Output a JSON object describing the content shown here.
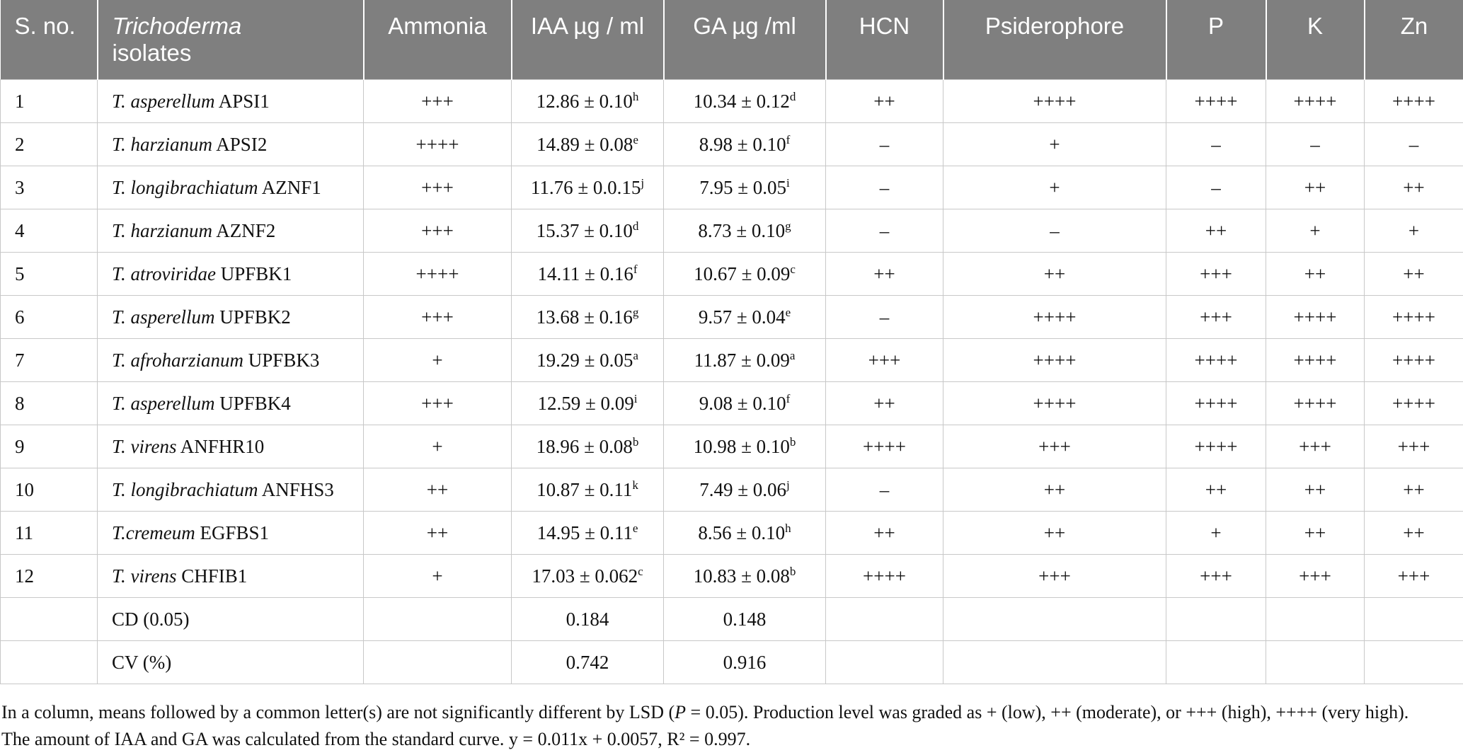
{
  "headers": {
    "sno": "S. no.",
    "isolates_italic": "Trichoderma",
    "isolates_rest": "isolates",
    "ammonia": "Ammonia",
    "iaa": "IAA µg / ml",
    "ga": "GA µg /ml",
    "hcn": "HCN",
    "psiderophore": "Psiderophore",
    "p": "P",
    "k": "K",
    "zn": "Zn"
  },
  "rows": [
    {
      "sno": "1",
      "species": "T. asperellum",
      "strain": "APSI1",
      "ammonia": "+++",
      "iaa": "12.86 ± 0.10",
      "iaa_sup": "h",
      "ga": "10.34 ± 0.12",
      "ga_sup": "d",
      "hcn": "++",
      "psid": "++++",
      "p": "++++",
      "k": "++++",
      "zn": "++++"
    },
    {
      "sno": "2",
      "species": "T. harzianum",
      "strain": "APSI2",
      "ammonia": "++++",
      "iaa": "14.89 ± 0.08",
      "iaa_sup": "e",
      "ga": "8.98 ± 0.10",
      "ga_sup": "f",
      "hcn": "–",
      "psid": "+",
      "p": "–",
      "k": "–",
      "zn": "–"
    },
    {
      "sno": "3",
      "species": "T. longibrachiatum",
      "strain": "AZNF1",
      "ammonia": "+++",
      "iaa": "11.76 ± 0.0.15",
      "iaa_sup": "j",
      "ga": "7.95 ± 0.05",
      "ga_sup": "i",
      "hcn": "–",
      "psid": "+",
      "p": "–",
      "k": "++",
      "zn": "++"
    },
    {
      "sno": "4",
      "species": "T. harzianum",
      "strain": "AZNF2",
      "ammonia": "+++",
      "iaa": "15.37 ± 0.10",
      "iaa_sup": "d",
      "ga": "8.73 ± 0.10",
      "ga_sup": "g",
      "hcn": "–",
      "psid": "–",
      "p": "++",
      "k": "+",
      "zn": "+"
    },
    {
      "sno": "5",
      "species": "T. atroviridae",
      "strain": "UPFBK1",
      "ammonia": "++++",
      "iaa": "14.11 ± 0.16",
      "iaa_sup": "f",
      "ga": "10.67 ± 0.09",
      "ga_sup": "c",
      "hcn": "++",
      "psid": "++",
      "p": "+++",
      "k": "++",
      "zn": "++"
    },
    {
      "sno": "6",
      "species": "T. asperellum",
      "strain": "UPFBK2",
      "ammonia": "+++",
      "iaa": "13.68 ± 0.16",
      "iaa_sup": "g",
      "ga": "9.57 ± 0.04",
      "ga_sup": "e",
      "hcn": "–",
      "psid": "++++",
      "p": "+++",
      "k": "++++",
      "zn": "++++"
    },
    {
      "sno": "7",
      "species": "T. afroharzianum",
      "strain": "UPFBK3",
      "ammonia": "+",
      "iaa": "19.29 ± 0.05",
      "iaa_sup": "a",
      "ga": "11.87 ± 0.09",
      "ga_sup": "a",
      "hcn": "+++",
      "psid": "++++",
      "p": "++++",
      "k": "++++",
      "zn": "++++"
    },
    {
      "sno": "8",
      "species": "T. asperellum",
      "strain": "UPFBK4",
      "ammonia": "+++",
      "iaa": "12.59 ± 0.09",
      "iaa_sup": "i",
      "ga": "9.08 ± 0.10",
      "ga_sup": "f",
      "hcn": "++",
      "psid": "++++",
      "p": "++++",
      "k": "++++",
      "zn": "++++"
    },
    {
      "sno": "9",
      "species": "T. virens",
      "strain": "ANFHR10",
      "ammonia": "+",
      "iaa": "18.96 ± 0.08",
      "iaa_sup": "b",
      "ga": "10.98 ± 0.10",
      "ga_sup": "b",
      "hcn": "++++",
      "psid": "+++",
      "p": "++++",
      "k": "+++",
      "zn": "+++"
    },
    {
      "sno": "10",
      "species": "T. longibrachiatum",
      "strain": "ANFHS3",
      "ammonia": "++",
      "iaa": "10.87 ± 0.11",
      "iaa_sup": "k",
      "ga": "7.49 ± 0.06",
      "ga_sup": "j",
      "hcn": "–",
      "psid": "++",
      "p": "++",
      "k": "++",
      "zn": "++"
    },
    {
      "sno": "11",
      "species": "T.cremeum",
      "strain": "EGFBS1",
      "ammonia": "++",
      "iaa": "14.95 ± 0.11",
      "iaa_sup": "e",
      "ga": "8.56 ± 0.10",
      "ga_sup": "h",
      "hcn": "++",
      "psid": "++",
      "p": "+",
      "k": "++",
      "zn": "++"
    },
    {
      "sno": "12",
      "species": "T. virens",
      "strain": "CHFIB1",
      "ammonia": "+",
      "iaa": "17.03 ± 0.062",
      "iaa_sup": "c",
      "ga": "10.83 ± 0.08",
      "ga_sup": "b",
      "hcn": "++++",
      "psid": "+++",
      "p": "+++",
      "k": "+++",
      "zn": "+++"
    }
  ],
  "summary_rows": [
    {
      "label": "CD (0.05)",
      "iaa": "0.184",
      "ga": "0.148"
    },
    {
      "label": "CV (%)",
      "iaa": "0.742",
      "ga": "0.916"
    }
  ],
  "notes": {
    "line1_a": "In a column, means followed by a common letter(s) are not significantly different by LSD (",
    "line1_p": "P",
    "line1_b": " = 0.05). Production level was graded as + (low), ++ (moderate), or +++ (high), ++++ (very high).",
    "line2": "The amount of IAA and GA was calculated from the standard curve. y = 0.011x + 0.0057, R² = 0.997."
  },
  "colors": {
    "header_bg": "#7f7f7f",
    "header_text": "#ffffff",
    "grid": "#c8c8c8"
  }
}
